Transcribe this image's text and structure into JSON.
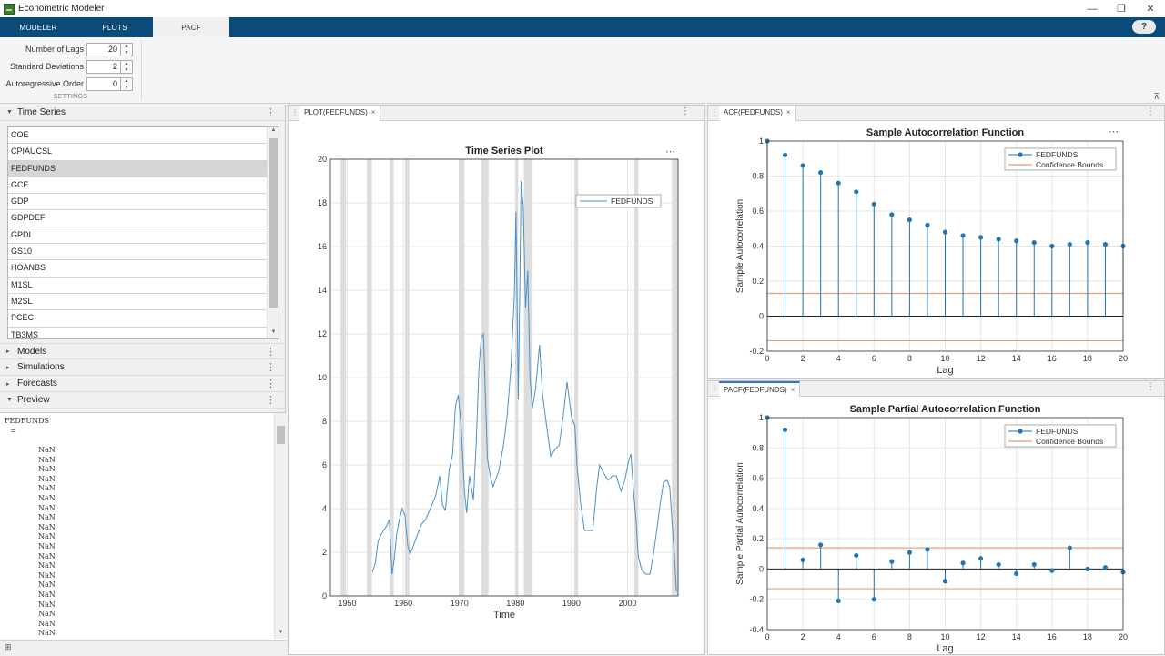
{
  "window": {
    "title": "Econometric Modeler"
  },
  "tabs": [
    {
      "label": "MODELER"
    },
    {
      "label": "PLOTS"
    },
    {
      "label": "PACF"
    }
  ],
  "help_glyph": "?",
  "settings": {
    "num_lags": {
      "label": "Number of Lags",
      "value": "20"
    },
    "std_devs": {
      "label": "Standard Deviations",
      "value": "2"
    },
    "ar_order": {
      "label": "Autoregressive Order",
      "value": "0"
    },
    "caption": "SETTINGS"
  },
  "browser": {
    "time_series_header": "Time Series",
    "series": [
      "COE",
      "CPIAUCSL",
      "FEDFUNDS",
      "GCE",
      "GDP",
      "GDPDEF",
      "GPDI",
      "GS10",
      "HOANBS",
      "M1SL",
      "M2SL",
      "PCEC",
      "TB3MS"
    ],
    "selected": "FEDFUNDS",
    "models_header": "Models",
    "simulations_header": "Simulations",
    "forecasts_header": "Forecasts",
    "preview_header": "Preview",
    "preview_var": "FEDFUNDS",
    "preview_eq": "=",
    "preview_values": [
      "NaN",
      "NaN",
      "NaN",
      "NaN",
      "NaN",
      "NaN",
      "NaN",
      "NaN",
      "NaN",
      "NaN",
      "NaN",
      "NaN",
      "NaN",
      "NaN",
      "NaN",
      "NaN",
      "NaN",
      "NaN",
      "NaN",
      "NaN",
      "NaN"
    ]
  },
  "status": {
    "text": "⊞"
  },
  "doc_tabs": {
    "plot": "PLOT(FEDFUNDS)",
    "acf": "ACF(FEDFUNDS)",
    "pacf": "PACF(FEDFUNDS)",
    "close": "×"
  },
  "chart_data": [
    {
      "type": "line",
      "title": "Time Series Plot",
      "xlabel": "Time",
      "ylabel": "",
      "xlim": [
        1947,
        2009
      ],
      "ylim": [
        0,
        20
      ],
      "xticks": [
        1950,
        1960,
        1970,
        1980,
        1990,
        2000
      ],
      "yticks": [
        0,
        2,
        4,
        6,
        8,
        10,
        12,
        14,
        16,
        18,
        20
      ],
      "legend": {
        "entries": [
          "FEDFUNDS"
        ],
        "placement": "top-right"
      },
      "color": "#4a90c8",
      "recession_color": "#d9d9d9",
      "recessions": [
        [
          1948.8,
          1949.8
        ],
        [
          1953.5,
          1954.4
        ],
        [
          1957.6,
          1958.3
        ],
        [
          1960.3,
          1961.1
        ],
        [
          1969.9,
          1970.9
        ],
        [
          1973.9,
          1975.2
        ],
        [
          1980.0,
          1980.5
        ],
        [
          1981.5,
          1982.9
        ],
        [
          1990.5,
          1991.2
        ],
        [
          2001.2,
          2001.9
        ],
        [
          2007.9,
          2009.0
        ]
      ],
      "x": [
        1954.5,
        1955.0,
        1955.5,
        1956.0,
        1956.5,
        1957.0,
        1957.5,
        1958.0,
        1958.4,
        1958.8,
        1959.3,
        1959.8,
        1960.3,
        1960.8,
        1961.2,
        1961.8,
        1962.5,
        1963.3,
        1964.0,
        1965.0,
        1965.8,
        1966.5,
        1967.0,
        1967.5,
        1968.2,
        1968.8,
        1969.3,
        1969.8,
        1970.3,
        1970.9,
        1971.3,
        1971.8,
        1972.5,
        1973.0,
        1973.5,
        1973.9,
        1974.3,
        1974.6,
        1975.0,
        1975.5,
        1976.0,
        1977.0,
        1977.8,
        1978.5,
        1979.2,
        1979.8,
        1980.1,
        1980.5,
        1980.8,
        1981.0,
        1981.4,
        1981.8,
        1982.2,
        1982.6,
        1983.0,
        1983.6,
        1984.3,
        1984.8,
        1985.5,
        1986.3,
        1987.0,
        1987.8,
        1988.5,
        1989.2,
        1990.0,
        1990.6,
        1991.0,
        1991.6,
        1992.3,
        1993.0,
        1993.8,
        1994.5,
        1995.0,
        1995.8,
        1996.5,
        1997.3,
        1998.0,
        1998.8,
        1999.5,
        2000.2,
        2000.6,
        2001.0,
        2001.5,
        2001.9,
        2002.5,
        2003.2,
        2004.0,
        2004.6,
        2005.2,
        2005.8,
        2006.4,
        2007.0,
        2007.5,
        2007.9,
        2008.3,
        2008.7
      ],
      "y": [
        1.1,
        1.5,
        2.5,
        2.8,
        3.0,
        3.2,
        3.5,
        1.0,
        1.7,
        2.8,
        3.5,
        4.0,
        3.7,
        2.3,
        1.9,
        2.3,
        2.8,
        3.3,
        3.5,
        4.1,
        4.6,
        5.5,
        4.2,
        3.9,
        5.8,
        6.5,
        8.7,
        9.2,
        7.8,
        4.8,
        3.8,
        5.5,
        4.4,
        7.0,
        10.5,
        11.8,
        12.0,
        9.4,
        6.3,
        5.5,
        5.0,
        5.7,
        6.8,
        8.2,
        10.5,
        13.8,
        17.6,
        9.0,
        14.7,
        19.0,
        17.8,
        13.2,
        14.9,
        10.0,
        8.6,
        9.5,
        11.5,
        9.3,
        7.9,
        6.4,
        6.7,
        6.9,
        8.2,
        9.8,
        8.2,
        7.8,
        5.9,
        4.3,
        3.0,
        3.0,
        3.0,
        5.0,
        6.0,
        5.6,
        5.3,
        5.5,
        5.5,
        4.8,
        5.3,
        6.2,
        6.5,
        5.0,
        3.5,
        1.8,
        1.2,
        1.0,
        1.0,
        1.9,
        3.0,
        4.2,
        5.2,
        5.3,
        5.0,
        3.5,
        2.0,
        0.2
      ]
    },
    {
      "type": "stem",
      "title": "Sample Autocorrelation Function",
      "xlabel": "Lag",
      "ylabel": "Sample Autocorrelation",
      "xlim": [
        0,
        20
      ],
      "ylim": [
        -0.2,
        1
      ],
      "xticks": [
        0,
        2,
        4,
        6,
        8,
        10,
        12,
        14,
        16,
        18,
        20
      ],
      "yticks": [
        -0.2,
        0,
        0.2,
        0.4,
        0.6,
        0.8,
        1
      ],
      "legend": {
        "entries": [
          "FEDFUNDS",
          "Confidence Bounds"
        ],
        "placement": "top-right"
      },
      "stem_color": "#1f77b4",
      "bound_color": "#e8a070",
      "lags": [
        0,
        1,
        2,
        3,
        4,
        5,
        6,
        7,
        8,
        9,
        10,
        11,
        12,
        13,
        14,
        15,
        16,
        17,
        18,
        19,
        20
      ],
      "values": [
        1.0,
        0.92,
        0.86,
        0.82,
        0.76,
        0.71,
        0.64,
        0.58,
        0.55,
        0.52,
        0.48,
        0.46,
        0.45,
        0.44,
        0.43,
        0.42,
        0.4,
        0.41,
        0.42,
        0.41,
        0.4
      ],
      "bounds": [
        0.13,
        -0.14
      ]
    },
    {
      "type": "stem",
      "title": "Sample Partial Autocorrelation Function",
      "xlabel": "Lag",
      "ylabel": "Sample Partial Autocorrelation",
      "xlim": [
        0,
        20
      ],
      "ylim": [
        -0.4,
        1
      ],
      "xticks": [
        0,
        2,
        4,
        6,
        8,
        10,
        12,
        14,
        16,
        18,
        20
      ],
      "yticks": [
        -0.4,
        -0.2,
        0,
        0.2,
        0.4,
        0.6,
        0.8,
        1
      ],
      "legend": {
        "entries": [
          "FEDFUNDS",
          "Confidence Bounds"
        ],
        "placement": "top-right"
      },
      "stem_color": "#1f77b4",
      "bound_color": "#e8a070",
      "lags": [
        0,
        1,
        2,
        3,
        4,
        5,
        6,
        7,
        8,
        9,
        10,
        11,
        12,
        13,
        14,
        15,
        16,
        17,
        18,
        19,
        20
      ],
      "values": [
        1.0,
        0.92,
        0.06,
        0.16,
        -0.21,
        0.09,
        -0.2,
        0.05,
        0.11,
        0.13,
        -0.08,
        0.04,
        0.07,
        0.03,
        -0.03,
        0.03,
        -0.01,
        0.14,
        0.0,
        0.01,
        -0.02
      ],
      "bounds": [
        0.14,
        -0.13
      ]
    }
  ]
}
